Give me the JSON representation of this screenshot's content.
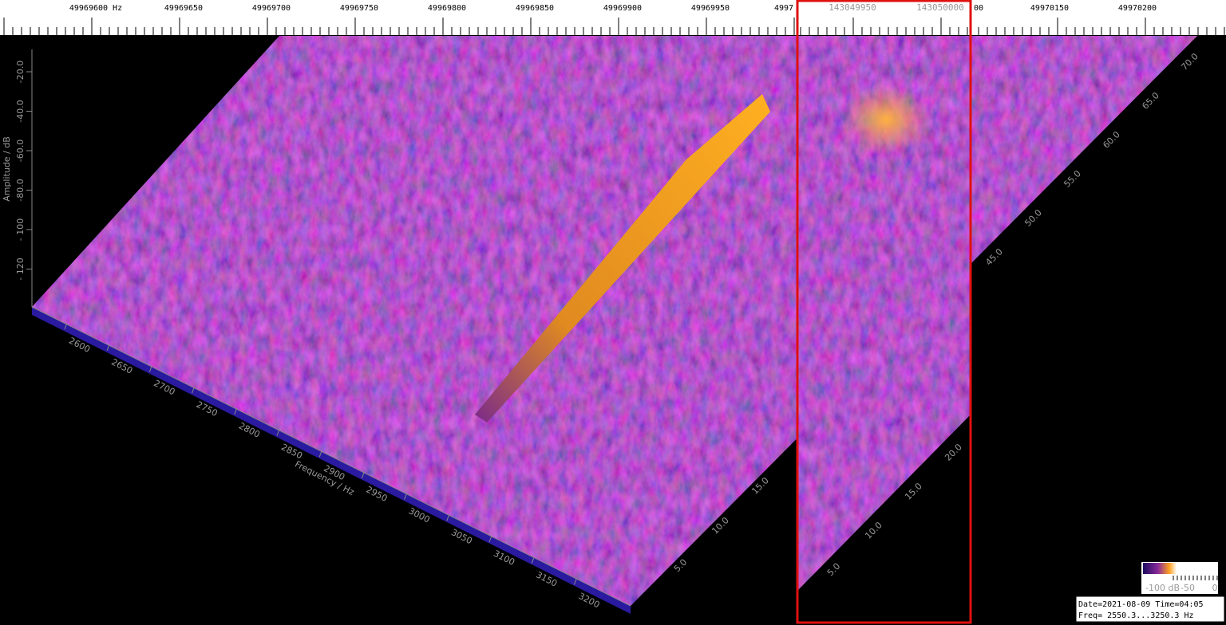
{
  "top_ruler": {
    "labels": [
      "49969600 Hz",
      "49969650",
      "49969700",
      "49969750",
      "49969800",
      "49969850",
      "49969900",
      "49969950",
      "4997",
      "00",
      "49970150",
      "49970200"
    ]
  },
  "amplitude_axis": {
    "title": "Amplitude / dB",
    "labels": [
      "-20.0",
      "-40.0",
      "-60.0",
      "-80.0",
      "- 100",
      "- 120"
    ]
  },
  "frequency_axis": {
    "title": "Frequency / Hz",
    "labels": [
      "2600",
      "2650",
      "2700",
      "2750",
      "2800",
      "2850",
      "2900",
      "2950",
      "3000",
      "3050",
      "3100",
      "3150",
      "3200"
    ]
  },
  "time_axis": {
    "upper_labels": [
      "70.0",
      "65.0",
      "60.0",
      "55.0",
      "50.0",
      "45.0"
    ],
    "lower_labels": [
      "15.0",
      "10.0",
      "5.0"
    ]
  },
  "overlay": {
    "ruler_labels": [
      "143049950",
      "143050000"
    ],
    "time_labels": [
      "20.0",
      "15.0",
      "10.0",
      "5.0"
    ]
  },
  "color_scale": {
    "labels": [
      "-100 dB",
      "-50",
      "0"
    ]
  },
  "status": {
    "date": "Date=2021-08-09 Time=04:05",
    "freq": "Freq= 2550.3...3250.3 Hz"
  }
}
